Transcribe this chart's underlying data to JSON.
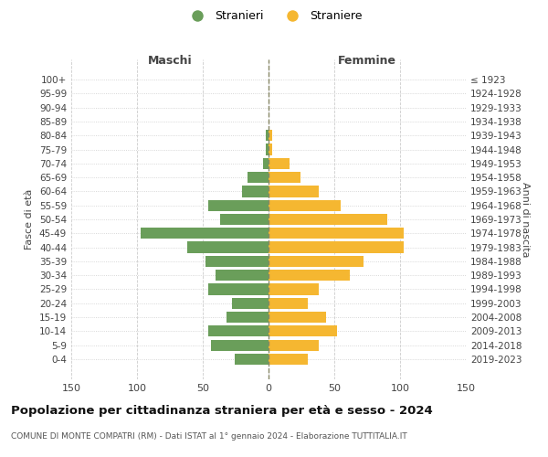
{
  "age_groups_bottom_to_top": [
    "0-4",
    "5-9",
    "10-14",
    "15-19",
    "20-24",
    "25-29",
    "30-34",
    "35-39",
    "40-44",
    "45-49",
    "50-54",
    "55-59",
    "60-64",
    "65-69",
    "70-74",
    "75-79",
    "80-84",
    "85-89",
    "90-94",
    "95-99",
    "100+"
  ],
  "birth_years_bottom_to_top": [
    "2019-2023",
    "2014-2018",
    "2009-2013",
    "2004-2008",
    "1999-2003",
    "1994-1998",
    "1989-1993",
    "1984-1988",
    "1979-1983",
    "1974-1978",
    "1969-1973",
    "1964-1968",
    "1959-1963",
    "1954-1958",
    "1949-1953",
    "1944-1948",
    "1939-1943",
    "1934-1938",
    "1929-1933",
    "1924-1928",
    "≤ 1923"
  ],
  "males_bottom_to_top": [
    26,
    44,
    46,
    32,
    28,
    46,
    40,
    48,
    62,
    97,
    37,
    46,
    20,
    16,
    4,
    2,
    2,
    0,
    0,
    0,
    0
  ],
  "females_bottom_to_top": [
    30,
    38,
    52,
    44,
    30,
    38,
    62,
    72,
    103,
    103,
    90,
    55,
    38,
    24,
    16,
    3,
    3,
    0,
    0,
    0,
    0
  ],
  "male_color": "#6a9e5a",
  "female_color": "#f5b731",
  "title": "Popolazione per cittadinanza straniera per età e sesso - 2024",
  "subtitle": "COMUNE DI MONTE COMPATRI (RM) - Dati ISTAT al 1° gennaio 2024 - Elaborazione TUTTITALIA.IT",
  "legend_male": "Stranieri",
  "legend_female": "Straniere",
  "header_left": "Maschi",
  "header_right": "Femmine",
  "ylabel_left": "Fasce di età",
  "ylabel_right": "Anni di nascita",
  "xlim": 150,
  "background_color": "#ffffff",
  "grid_color": "#cccccc",
  "dashed_line_color": "#888866"
}
